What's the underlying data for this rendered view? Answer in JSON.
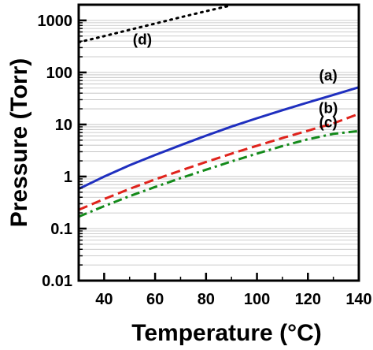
{
  "chart_data": {
    "type": "line",
    "xlabel": "Temperature",
    "xlabel_unit": "(°C)",
    "ylabel": "Pressure (Torr)",
    "xlim": [
      30,
      140
    ],
    "ylim": [
      0.01,
      2000
    ],
    "yscale": "log",
    "grid": "horizontal minor log gridlines",
    "x_ticks": [
      "40",
      "60",
      "80",
      "100",
      "120",
      "140"
    ],
    "y_ticks": [
      "0.01",
      "0.1",
      "1",
      "10",
      "100",
      "1000"
    ],
    "series": [
      {
        "name": "(a)",
        "color": "#1f2fbf",
        "dash": "solid",
        "x": [
          30,
          40,
          50,
          60,
          70,
          80,
          90,
          100,
          110,
          120,
          130,
          140
        ],
        "y": [
          0.58,
          1.0,
          1.65,
          2.6,
          4.0,
          6.1,
          9.1,
          13.2,
          18.8,
          26.5,
          37,
          52
        ]
      },
      {
        "name": "(b)",
        "color": "#e0231c",
        "dash": "dashed",
        "x": [
          30,
          40,
          50,
          60,
          70,
          80,
          90,
          100,
          110,
          120,
          130,
          140
        ],
        "y": [
          0.23,
          0.37,
          0.58,
          0.88,
          1.3,
          1.9,
          2.75,
          3.9,
          5.5,
          7.6,
          10.5,
          16
        ]
      },
      {
        "name": "(c)",
        "color": "#138a1a",
        "dash": "dashdot",
        "x": [
          30,
          40,
          50,
          60,
          70,
          80,
          90,
          100,
          110,
          120,
          130,
          140
        ],
        "y": [
          0.17,
          0.27,
          0.42,
          0.63,
          0.93,
          1.35,
          1.95,
          2.75,
          3.85,
          5.2,
          6.6,
          7.5
        ]
      },
      {
        "name": "(d)",
        "color": "#000000",
        "dash": "dotted",
        "x": [
          30,
          40,
          50,
          60,
          70,
          80,
          90
        ],
        "y": [
          380,
          500,
          660,
          870,
          1150,
          1500,
          1950
        ]
      }
    ]
  }
}
